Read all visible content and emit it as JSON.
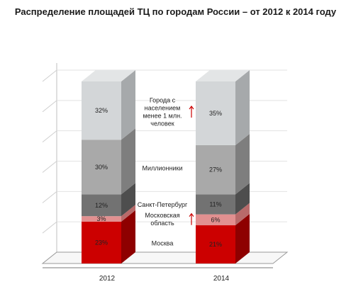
{
  "chart_data": {
    "type": "bar",
    "stacked": true,
    "percent": true,
    "title": "Распределение площадей ТЦ по городам России – от 2012 к 2014 году",
    "categories": [
      "2012",
      "2014"
    ],
    "series": [
      {
        "name": "Москва",
        "values": [
          23,
          21
        ],
        "labels": [
          "23%",
          "21%"
        ],
        "color": "#cc0000",
        "top_color": "#e03030",
        "side_color": "#8e0000"
      },
      {
        "name": "Московская область",
        "values": [
          3,
          6
        ],
        "labels": [
          "3%",
          "6%"
        ],
        "color": "#e29090",
        "top_color": "#eeb0b0",
        "side_color": "#b86a6a"
      },
      {
        "name": "Санкт-Петербург",
        "values": [
          12,
          11
        ],
        "labels": [
          "12%",
          "11%"
        ],
        "color": "#727272",
        "top_color": "#8a8a8a",
        "side_color": "#4e4e4e"
      },
      {
        "name": "Миллионники",
        "values": [
          30,
          27
        ],
        "labels": [
          "30%",
          "27%"
        ],
        "color": "#a9a9a9",
        "top_color": "#bdbdbd",
        "side_color": "#7e7e7e"
      },
      {
        "name": "Города с населением менее 1 млн. человек",
        "values": [
          32,
          35
        ],
        "labels": [
          "32%",
          "35%"
        ],
        "color": "#d3d6d8",
        "top_color": "#e3e5e6",
        "side_color": "#a6a9ab"
      }
    ],
    "ylim": [
      0,
      100
    ],
    "grid": true,
    "increase_markers": [
      "Московская область",
      "Города с населением менее 1 млн. человек"
    ],
    "arrow_color": "#cc0000"
  },
  "segment_labels": [
    {
      "lines": [
        "Москва"
      ]
    },
    {
      "lines": [
        "Московская",
        "область"
      ]
    },
    {
      "lines": [
        "Санкт-Петербург"
      ]
    },
    {
      "lines": [
        "Миллионники"
      ]
    },
    {
      "lines": [
        "Города с",
        "населением",
        "менее 1 млн.",
        "человек"
      ]
    }
  ]
}
